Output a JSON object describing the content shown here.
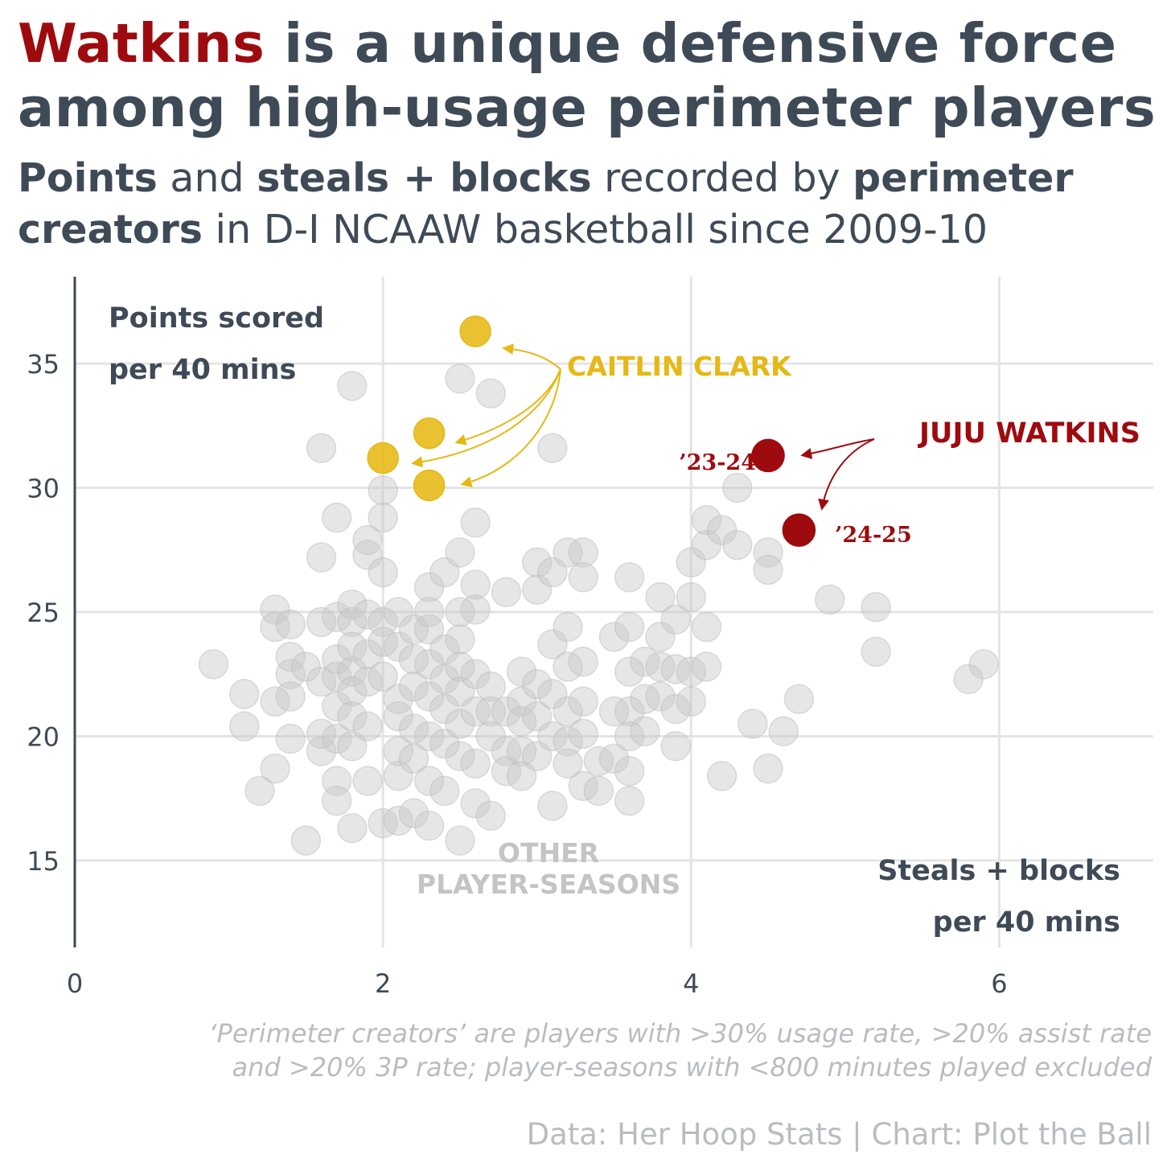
{
  "title": {
    "highlight": "Watkins",
    "rest_line1": " is a unique defensive force",
    "line2": "among high-usage perimeter players",
    "highlight_color": "#9e0b0f"
  },
  "subtitle": {
    "points": "Points",
    "and": " and ",
    "sb": "steals + blocks",
    "recorded": " recorded by ",
    "perimeter": "perimeter",
    "creators": "creators",
    "rest": " in D-I NCAAW basketball since 2009-10"
  },
  "chart_data": {
    "type": "scatter",
    "ylabel": [
      "Points scored",
      "per 40 mins"
    ],
    "xlabel": [
      "Steals + blocks",
      "per 40 mins"
    ],
    "xlim": [
      0,
      7
    ],
    "ylim": [
      11.5,
      38.5
    ],
    "x_ticks": [
      0,
      2,
      4,
      6
    ],
    "y_ticks": [
      15,
      20,
      25,
      30,
      35
    ],
    "grid": true,
    "series": [
      {
        "name": "OTHER PLAYER-SEASONS",
        "color": "#c8c8c8",
        "points": [
          [
            0.9,
            22.9
          ],
          [
            1.1,
            21.7
          ],
          [
            1.1,
            20.4
          ],
          [
            1.2,
            17.8
          ],
          [
            1.3,
            18.7
          ],
          [
            1.3,
            25.1
          ],
          [
            1.3,
            24.4
          ],
          [
            1.3,
            21.4
          ],
          [
            1.4,
            23.2
          ],
          [
            1.4,
            22.5
          ],
          [
            1.4,
            21.6
          ],
          [
            1.4,
            19.9
          ],
          [
            1.4,
            24.5
          ],
          [
            1.5,
            22.8
          ],
          [
            1.5,
            15.8
          ],
          [
            1.6,
            31.6
          ],
          [
            1.6,
            27.2
          ],
          [
            1.6,
            24.6
          ],
          [
            1.6,
            22.2
          ],
          [
            1.6,
            20.1
          ],
          [
            1.6,
            19.4
          ],
          [
            1.7,
            28.8
          ],
          [
            1.7,
            24.8
          ],
          [
            1.7,
            23.1
          ],
          [
            1.7,
            22.4
          ],
          [
            1.7,
            21.2
          ],
          [
            1.7,
            19.9
          ],
          [
            1.7,
            18.2
          ],
          [
            1.7,
            17.4
          ],
          [
            1.8,
            34.1
          ],
          [
            1.8,
            25.3
          ],
          [
            1.8,
            24.6
          ],
          [
            1.8,
            23.6
          ],
          [
            1.8,
            22.6
          ],
          [
            1.8,
            21.8
          ],
          [
            1.8,
            20.8
          ],
          [
            1.8,
            19.6
          ],
          [
            1.8,
            16.3
          ],
          [
            1.9,
            27.9
          ],
          [
            1.9,
            27.3
          ],
          [
            1.9,
            24.9
          ],
          [
            1.9,
            23.3
          ],
          [
            1.9,
            22.2
          ],
          [
            1.9,
            20.4
          ],
          [
            1.9,
            18.2
          ],
          [
            2.0,
            29.9
          ],
          [
            2.0,
            28.8
          ],
          [
            2.0,
            26.6
          ],
          [
            2.0,
            24.6
          ],
          [
            2.0,
            23.8
          ],
          [
            2.0,
            22.4
          ],
          [
            2.0,
            16.5
          ],
          [
            2.1,
            25.0
          ],
          [
            2.1,
            23.6
          ],
          [
            2.1,
            21.5
          ],
          [
            2.1,
            20.8
          ],
          [
            2.1,
            19.4
          ],
          [
            2.1,
            18.4
          ],
          [
            2.1,
            16.6
          ],
          [
            2.2,
            24.3
          ],
          [
            2.2,
            23.1
          ],
          [
            2.2,
            22.0
          ],
          [
            2.2,
            20.3
          ],
          [
            2.2,
            19.1
          ],
          [
            2.2,
            16.9
          ],
          [
            2.3,
            26.0
          ],
          [
            2.3,
            25.0
          ],
          [
            2.3,
            24.3
          ],
          [
            2.3,
            22.9
          ],
          [
            2.3,
            21.6
          ],
          [
            2.3,
            20.0
          ],
          [
            2.3,
            18.2
          ],
          [
            2.3,
            16.4
          ],
          [
            2.4,
            26.6
          ],
          [
            2.4,
            23.5
          ],
          [
            2.4,
            22.3
          ],
          [
            2.4,
            21.1
          ],
          [
            2.4,
            19.7
          ],
          [
            2.4,
            17.8
          ],
          [
            2.5,
            34.4
          ],
          [
            2.5,
            27.4
          ],
          [
            2.5,
            25.0
          ],
          [
            2.5,
            23.9
          ],
          [
            2.5,
            22.8
          ],
          [
            2.5,
            21.8
          ],
          [
            2.5,
            20.5
          ],
          [
            2.5,
            19.2
          ],
          [
            2.5,
            15.8
          ],
          [
            2.6,
            28.6
          ],
          [
            2.6,
            26.1
          ],
          [
            2.6,
            25.1
          ],
          [
            2.6,
            22.5
          ],
          [
            2.6,
            21.0
          ],
          [
            2.6,
            18.9
          ],
          [
            2.6,
            17.3
          ],
          [
            2.7,
            33.8
          ],
          [
            2.7,
            22.0
          ],
          [
            2.7,
            21.0
          ],
          [
            2.7,
            20.0
          ],
          [
            2.7,
            16.8
          ],
          [
            2.8,
            25.8
          ],
          [
            2.8,
            21.0
          ],
          [
            2.8,
            19.4
          ],
          [
            2.8,
            18.6
          ],
          [
            2.9,
            22.6
          ],
          [
            2.9,
            21.4
          ],
          [
            2.9,
            20.6
          ],
          [
            2.9,
            19.4
          ],
          [
            2.9,
            18.4
          ],
          [
            3.0,
            27.0
          ],
          [
            3.0,
            25.9
          ],
          [
            3.0,
            22.1
          ],
          [
            3.0,
            20.8
          ],
          [
            3.0,
            19.2
          ],
          [
            3.1,
            31.6
          ],
          [
            3.1,
            26.6
          ],
          [
            3.1,
            23.7
          ],
          [
            3.1,
            21.7
          ],
          [
            3.1,
            20.0
          ],
          [
            3.1,
            17.2
          ],
          [
            3.2,
            27.4
          ],
          [
            3.2,
            24.4
          ],
          [
            3.2,
            22.8
          ],
          [
            3.2,
            21.0
          ],
          [
            3.2,
            19.8
          ],
          [
            3.2,
            18.9
          ],
          [
            3.3,
            27.4
          ],
          [
            3.3,
            26.4
          ],
          [
            3.3,
            23.0
          ],
          [
            3.3,
            21.4
          ],
          [
            3.3,
            20.1
          ],
          [
            3.3,
            18.0
          ],
          [
            3.4,
            19.0
          ],
          [
            3.4,
            17.8
          ],
          [
            3.5,
            24.0
          ],
          [
            3.5,
            21.0
          ],
          [
            3.5,
            19.1
          ],
          [
            3.6,
            26.4
          ],
          [
            3.6,
            24.4
          ],
          [
            3.6,
            22.6
          ],
          [
            3.6,
            21.0
          ],
          [
            3.6,
            20.0
          ],
          [
            3.6,
            18.6
          ],
          [
            3.6,
            17.4
          ],
          [
            3.7,
            23.0
          ],
          [
            3.7,
            21.5
          ],
          [
            3.7,
            20.2
          ],
          [
            3.8,
            25.6
          ],
          [
            3.8,
            24.0
          ],
          [
            3.8,
            22.8
          ],
          [
            3.8,
            21.6
          ],
          [
            3.9,
            24.7
          ],
          [
            3.9,
            22.7
          ],
          [
            3.9,
            21.1
          ],
          [
            3.9,
            19.6
          ],
          [
            4.0,
            27.0
          ],
          [
            4.0,
            25.6
          ],
          [
            4.0,
            22.6
          ],
          [
            4.0,
            21.4
          ],
          [
            4.1,
            28.7
          ],
          [
            4.1,
            27.7
          ],
          [
            4.1,
            24.4
          ],
          [
            4.1,
            22.8
          ],
          [
            4.2,
            28.3
          ],
          [
            4.2,
            18.4
          ],
          [
            4.3,
            30.0
          ],
          [
            4.3,
            27.7
          ],
          [
            4.4,
            20.5
          ],
          [
            4.5,
            27.4
          ],
          [
            4.5,
            26.7
          ],
          [
            4.5,
            18.7
          ],
          [
            4.6,
            20.2
          ],
          [
            4.7,
            21.5
          ],
          [
            4.9,
            25.5
          ],
          [
            5.2,
            25.2
          ],
          [
            5.2,
            23.4
          ],
          [
            5.8,
            22.3
          ],
          [
            5.9,
            22.9
          ]
        ]
      },
      {
        "name": "CAITLIN CLARK",
        "color": "#e6b815",
        "points": [
          {
            "x": 2.6,
            "y": 36.3
          },
          {
            "x": 2.3,
            "y": 32.2
          },
          {
            "x": 2.0,
            "y": 31.2
          },
          {
            "x": 2.3,
            "y": 30.1
          }
        ]
      },
      {
        "name": "JUJU WATKINS",
        "color": "#9e0b0f",
        "points": [
          {
            "x": 4.5,
            "y": 31.3,
            "label": "’23-24"
          },
          {
            "x": 4.7,
            "y": 28.3,
            "label": "’24-25"
          }
        ]
      }
    ],
    "annotations": {
      "others": [
        "OTHER",
        "PLAYER-SEASONS"
      ]
    },
    "colors": {
      "axis": "#3f4a57",
      "grid": "#e4e4e4",
      "annotation_grey": "#c4c4c4"
    }
  },
  "footnote": {
    "line1": "‘Perimeter creators’ are players with >30% usage rate, >20% assist rate",
    "line2": "and >20% 3P rate; player-seasons with <800 minutes played excluded"
  },
  "source": "Data: Her Hoop Stats | Chart: Plot the Ball"
}
